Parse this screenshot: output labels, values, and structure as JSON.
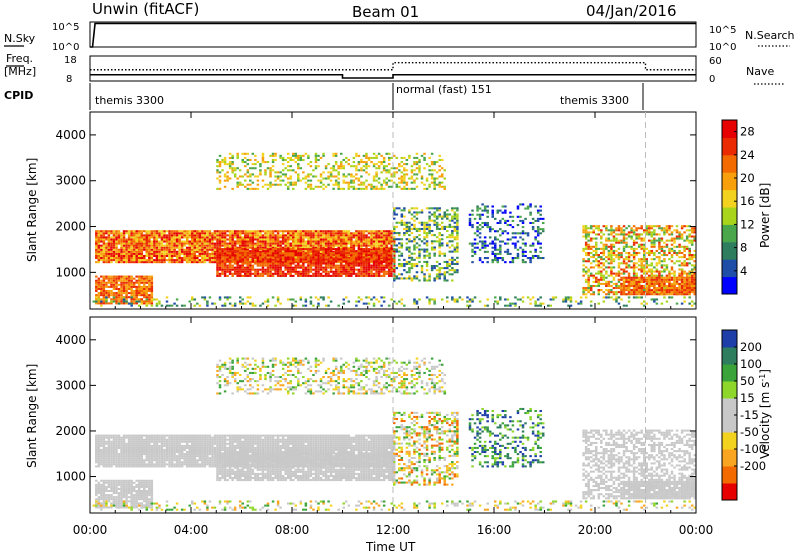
{
  "header": {
    "station": "Unwin (fitACF)",
    "beam": "Beam 01",
    "date": "04/Jan/2016"
  },
  "side_labels": {
    "nsky": "N.Sky",
    "nsearch": "N.Search",
    "freq_line1": "Freq.",
    "freq_line2": "[MHz]",
    "nave": "Nave",
    "cpid": "CPID"
  },
  "cpid_labels": [
    {
      "text": "themis 3300",
      "start": 0
    },
    {
      "text": "normal (fast) 151",
      "start": 12
    },
    {
      "text": "themis 3300",
      "start": 22
    }
  ],
  "colors": {
    "power": [
      "#0000ff",
      "#1f4ea8",
      "#2e7d5e",
      "#4aa64a",
      "#a8d41c",
      "#f3d21f",
      "#f7a00c",
      "#f36a00",
      "#ea2a00",
      "#e60000"
    ],
    "velocity": [
      "#e60000",
      "#f36a00",
      "#f9a521",
      "#f3d21f",
      "#c8c8c8",
      "#c8c8c8",
      "#8fd62a",
      "#3aa43a",
      "#2e7d5e",
      "#1f3fa8"
    ]
  },
  "chart_data": [
    {
      "type": "line",
      "panel": "N.Sky / N.Search",
      "ylabel_left": "N.Sky",
      "ylabel_right": "N.Search",
      "left_ticks": [
        "10^5",
        "10^0"
      ],
      "right_ticks": [
        "10^5",
        "10^0"
      ],
      "x_range_hours": [
        0,
        24
      ],
      "series": [
        {
          "name": "N.Sky",
          "x": [
            0,
            0.1,
            0.2,
            6,
            12,
            18,
            24
          ],
          "y_log10": [
            0,
            0,
            4.7,
            4.7,
            4.7,
            4.7,
            4.7
          ]
        }
      ]
    },
    {
      "type": "line",
      "panel": "Freq / Nave",
      "ylabel_left": "Freq. [MHz]",
      "ylabel_right": "Nave",
      "left_ticks": [
        "18",
        "8"
      ],
      "right_ticks": [
        "60",
        "0"
      ],
      "series": [
        {
          "name": "Freq.",
          "x": [
            0,
            10,
            10,
            12,
            12,
            22,
            22,
            24
          ],
          "y": [
            10.5,
            10.5,
            9.2,
            9.2,
            10.5,
            10.5,
            10.5,
            10.5
          ]
        },
        {
          "name": "Nave",
          "x": [
            0,
            10,
            10,
            12,
            12,
            22,
            22,
            24
          ],
          "y": [
            27,
            27,
            27,
            27,
            44,
            44,
            27,
            27
          ]
        }
      ]
    },
    {
      "type": "heatmap",
      "panel": "Power",
      "xlabel": "Time UT",
      "ylabel": "Slant Range [km]",
      "x_ticks": [
        "00:00",
        "04:00",
        "08:00",
        "12:00",
        "16:00",
        "20:00",
        "00:00"
      ],
      "y_ticks": [
        1000,
        2000,
        3000,
        4000
      ],
      "ylim_km": [
        200,
        4500
      ],
      "colorbar_label": "Power [dB]",
      "colorbar_ticks": [
        4,
        8,
        12,
        16,
        20,
        24,
        28
      ],
      "colorbar_range": [
        0,
        30
      ]
    },
    {
      "type": "heatmap",
      "panel": "Velocity",
      "xlabel": "Time UT",
      "ylabel": "Slant Range [km]",
      "x_ticks": [
        "00:00",
        "04:00",
        "08:00",
        "12:00",
        "16:00",
        "20:00",
        "00:00"
      ],
      "y_ticks": [
        1000,
        2000,
        3000,
        4000
      ],
      "ylim_km": [
        200,
        4500
      ],
      "colorbar_label": "Velocity [m s^-1]",
      "colorbar_ticks": [
        200,
        100,
        50,
        15,
        -15,
        -50,
        -100,
        -200
      ]
    }
  ],
  "axis": {
    "xlabel": "Time UT"
  }
}
